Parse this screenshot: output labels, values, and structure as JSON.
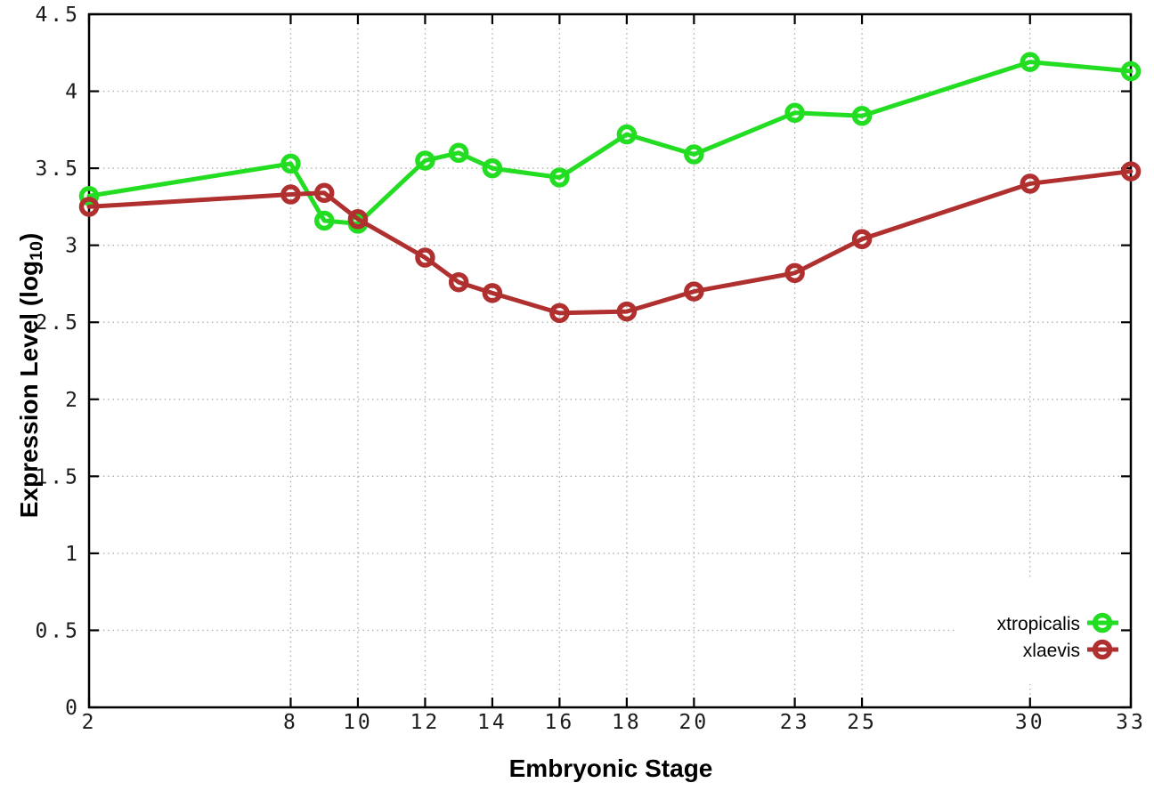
{
  "chart_data": {
    "type": "line",
    "title": "",
    "xlabel": "Embryonic Stage",
    "ylabel": "Expression Level (log10)",
    "ylabel_parts": {
      "pre": "Expression Level (log",
      "sub": "10",
      "post": ")"
    },
    "xlim": [
      2,
      33
    ],
    "ylim": [
      0,
      4.5
    ],
    "grid": true,
    "grid_style": "dotted",
    "grid_color": "#b0b0b0",
    "axis_color": "#000000",
    "background": "#ffffff",
    "legend_position": "bottom-right-inside",
    "marker": "open-circle",
    "x": [
      2,
      8,
      9,
      10,
      12,
      13,
      14,
      16,
      18,
      20,
      23,
      25,
      30,
      33
    ],
    "xticks": {
      "values": [
        2,
        8,
        10,
        12,
        14,
        16,
        18,
        20,
        23,
        25,
        30,
        33
      ],
      "labels": [
        "2",
        "8",
        "10",
        "12",
        "14",
        "16",
        "18",
        "20",
        "23",
        "25",
        "30",
        "33"
      ]
    },
    "yticks": {
      "values": [
        0,
        0.5,
        1,
        1.5,
        2,
        2.5,
        3,
        3.5,
        4,
        4.5
      ],
      "labels": [
        "0",
        "0.5",
        "1",
        "1.5",
        "2",
        "2.5",
        "3",
        "3.5",
        "4",
        "4.5"
      ]
    },
    "series": [
      {
        "name": "xtropicalis",
        "color": "#22dd22",
        "values": [
          3.32,
          3.53,
          3.16,
          3.14,
          3.55,
          3.6,
          3.5,
          3.44,
          3.72,
          3.59,
          3.86,
          3.84,
          4.19,
          4.13
        ]
      },
      {
        "name": "xlaevis",
        "color": "#b03030",
        "values": [
          3.25,
          3.33,
          3.34,
          3.17,
          2.92,
          2.76,
          2.69,
          2.56,
          2.57,
          2.7,
          2.82,
          3.04,
          3.4,
          3.48
        ]
      }
    ]
  }
}
